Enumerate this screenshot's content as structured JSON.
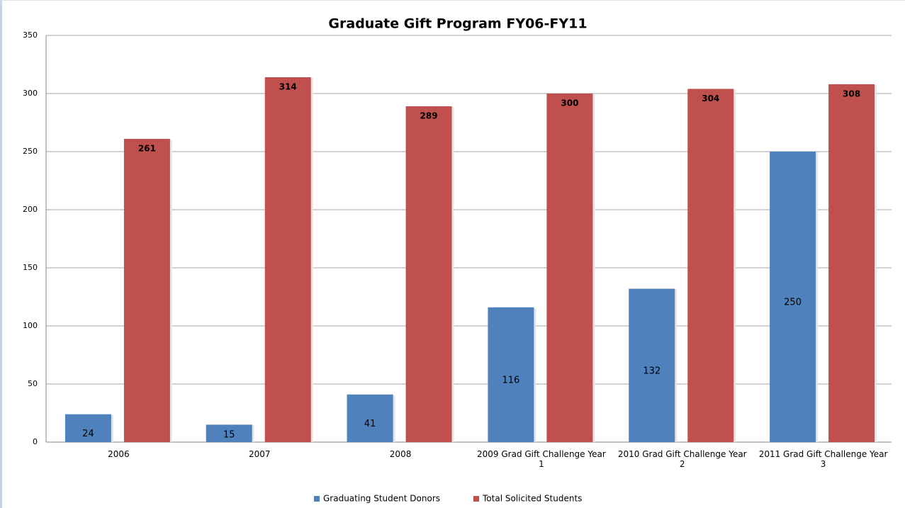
{
  "chart_data": {
    "type": "bar",
    "title": "Graduate Gift Program FY06-FY11",
    "categories": [
      "2006",
      "2007",
      "2008",
      "2009  Grad Gift Challenge Year 1",
      "2010 Grad Gift Challenge Year 2",
      "2011 Grad Gift Challenge Year 3"
    ],
    "series": [
      {
        "name": "Graduating Student Donors",
        "color": "#4f81bd",
        "values": [
          24,
          15,
          41,
          116,
          132,
          250
        ]
      },
      {
        "name": "Total Solicited Students",
        "color": "#c0504d",
        "values": [
          261,
          314,
          289,
          300,
          304,
          308
        ]
      }
    ],
    "ylim": [
      0,
      350
    ],
    "yticks": [
      0,
      50,
      100,
      150,
      200,
      250,
      300,
      350
    ],
    "grid": true,
    "legend": "bottom"
  }
}
